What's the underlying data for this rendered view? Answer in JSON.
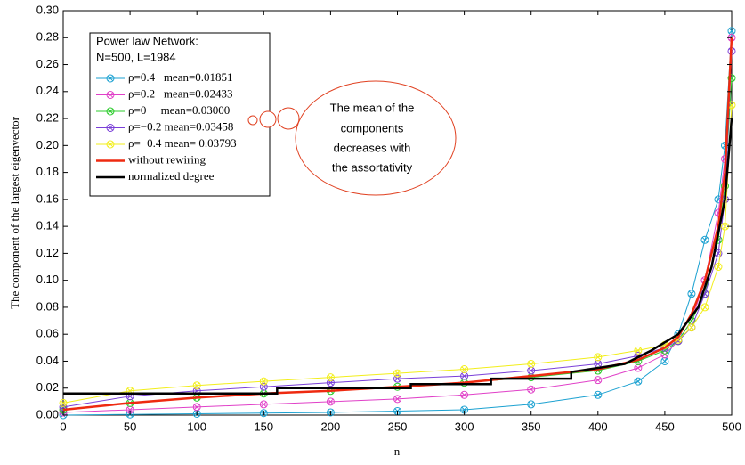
{
  "chart_data": {
    "type": "line",
    "xlabel": "n",
    "ylabel": "The component of the largest eigenvector",
    "xlim": [
      0,
      500
    ],
    "ylim": [
      0,
      0.3
    ],
    "xticks": [
      0,
      50,
      100,
      150,
      200,
      250,
      300,
      350,
      400,
      450,
      500
    ],
    "yticks": [
      {
        "value": 0,
        "label": "0.00"
      },
      {
        "value": 0.02,
        "label": "0.02"
      },
      {
        "value": 0.04,
        "label": "0.04"
      },
      {
        "value": 0.06,
        "label": "0.06"
      },
      {
        "value": 0.08,
        "label": "0.08"
      },
      {
        "value": 0.1,
        "label": "0.10"
      },
      {
        "value": 0.12,
        "label": "0.12"
      },
      {
        "value": 0.14,
        "label": "0.14"
      },
      {
        "value": 0.16,
        "label": "0.16"
      },
      {
        "value": 0.18,
        "label": "0.18"
      },
      {
        "value": 0.2,
        "label": "0.20"
      },
      {
        "value": 0.22,
        "label": "0.22"
      },
      {
        "value": 0.24,
        "label": "0.24"
      },
      {
        "value": 0.26,
        "label": "0.26"
      },
      {
        "value": 0.28,
        "label": "0.28"
      },
      {
        "value": 0.3,
        "label": "0.30"
      }
    ],
    "legend_title": [
      "Power law Network:",
      "N=500, L=1984"
    ],
    "legend_position": "upper left",
    "annotation": [
      "The mean of the",
      "components",
      "decreases with",
      "the assortativity"
    ],
    "series": [
      {
        "name": "ρ=0.4   mean=0.01851",
        "color": "#1ba1d1",
        "style": "markers",
        "x": [
          0,
          50,
          100,
          150,
          200,
          250,
          300,
          350,
          400,
          430,
          450,
          460,
          470,
          480,
          490,
          495,
          500
        ],
        "values": [
          0,
          0.0005,
          0.001,
          0.0015,
          0.002,
          0.003,
          0.004,
          0.008,
          0.015,
          0.025,
          0.04,
          0.06,
          0.09,
          0.13,
          0.16,
          0.2,
          0.285
        ]
      },
      {
        "name": "ρ=0.2   mean=0.02433",
        "color": "#e040c8",
        "style": "markers",
        "x": [
          0,
          50,
          100,
          150,
          200,
          250,
          300,
          350,
          400,
          430,
          450,
          460,
          470,
          480,
          490,
          495,
          500
        ],
        "values": [
          0.002,
          0.004,
          0.006,
          0.008,
          0.01,
          0.012,
          0.015,
          0.019,
          0.026,
          0.035,
          0.045,
          0.055,
          0.07,
          0.1,
          0.15,
          0.19,
          0.28
        ]
      },
      {
        "name": "ρ=0     mean=0.03000",
        "color": "#2ccc2c",
        "style": "markers",
        "x": [
          0,
          50,
          100,
          150,
          200,
          250,
          300,
          350,
          400,
          430,
          450,
          460,
          470,
          480,
          490,
          495,
          500
        ],
        "values": [
          0.004,
          0.009,
          0.013,
          0.016,
          0.018,
          0.021,
          0.024,
          0.028,
          0.033,
          0.04,
          0.048,
          0.055,
          0.07,
          0.09,
          0.13,
          0.17,
          0.25
        ]
      },
      {
        "name": "ρ=−0.2 mean=0.03458",
        "color": "#7a3fd8",
        "style": "markers",
        "x": [
          0,
          50,
          100,
          150,
          200,
          250,
          300,
          350,
          400,
          430,
          450,
          460,
          470,
          480,
          490,
          495,
          500
        ],
        "values": [
          0.006,
          0.014,
          0.018,
          0.021,
          0.024,
          0.027,
          0.029,
          0.033,
          0.038,
          0.044,
          0.05,
          0.055,
          0.065,
          0.09,
          0.12,
          0.16,
          0.27
        ]
      },
      {
        "name": "ρ=−0.4 mean= 0.03793",
        "color": "#f2ee1a",
        "style": "markers",
        "x": [
          0,
          50,
          100,
          150,
          200,
          250,
          300,
          350,
          400,
          430,
          450,
          460,
          470,
          480,
          490,
          495,
          500
        ],
        "values": [
          0.009,
          0.018,
          0.022,
          0.025,
          0.028,
          0.031,
          0.034,
          0.038,
          0.043,
          0.048,
          0.052,
          0.056,
          0.065,
          0.08,
          0.11,
          0.14,
          0.23
        ]
      },
      {
        "name": "without rewiring",
        "color": "#ee2a10",
        "style": "line",
        "x": [
          0,
          50,
          100,
          150,
          200,
          250,
          300,
          350,
          400,
          430,
          450,
          460,
          470,
          480,
          490,
          495,
          500
        ],
        "values": [
          0.004,
          0.009,
          0.013,
          0.016,
          0.018,
          0.021,
          0.024,
          0.029,
          0.034,
          0.041,
          0.05,
          0.058,
          0.075,
          0.1,
          0.14,
          0.18,
          0.28
        ]
      },
      {
        "name": "normalized degree",
        "color": "#000000",
        "style": "line",
        "x": [
          0,
          160,
          160,
          260,
          260,
          320,
          320,
          380,
          380,
          420,
          440,
          460,
          475,
          485,
          495,
          500
        ],
        "values": [
          0.016,
          0.016,
          0.02,
          0.02,
          0.023,
          0.023,
          0.027,
          0.027,
          0.032,
          0.038,
          0.048,
          0.06,
          0.08,
          0.11,
          0.16,
          0.22
        ]
      }
    ]
  }
}
